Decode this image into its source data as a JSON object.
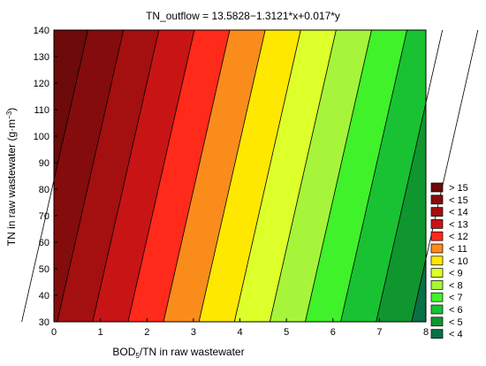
{
  "chart_data": {
    "type": "contour",
    "title": "TN_outflow = 13.5828−1.3121*x+0.017*y",
    "xlabel": {
      "pre": "BOD",
      "sub": "5",
      "post": "/TN in raw wastewater"
    },
    "ylabel": {
      "pre": "TN in raw wastewater (g·m",
      "sup": "−3",
      "post": ")"
    },
    "xlim": [
      0,
      8
    ],
    "ylim": [
      30,
      140
    ],
    "x_ticks": [
      0,
      1,
      2,
      3,
      4,
      5,
      6,
      7,
      8
    ],
    "y_ticks": [
      30,
      40,
      50,
      60,
      70,
      80,
      90,
      100,
      110,
      120,
      130,
      140
    ],
    "model": {
      "intercept": 13.5828,
      "coef_x": -1.3121,
      "coef_y": 0.017
    },
    "grid": false,
    "legend_position": "right",
    "levels": [
      {
        "label": "> 15",
        "lower": 15,
        "upper": null,
        "color": "#6d0a0a"
      },
      {
        "label": "< 15",
        "lower": 14,
        "upper": 15,
        "color": "#850c0c"
      },
      {
        "label": "< 14",
        "lower": 13,
        "upper": 14,
        "color": "#a40f0f"
      },
      {
        "label": "< 13",
        "lower": 12,
        "upper": 13,
        "color": "#c81414"
      },
      {
        "label": "< 12",
        "lower": 11,
        "upper": 12,
        "color": "#ff2a1a"
      },
      {
        "label": "< 11",
        "lower": 10,
        "upper": 11,
        "color": "#fa8c1c"
      },
      {
        "label": "< 10",
        "lower": 9,
        "upper": 10,
        "color": "#ffe800"
      },
      {
        "label": "< 9",
        "lower": 8,
        "upper": 9,
        "color": "#ddff2a"
      },
      {
        "label": "< 8",
        "lower": 7,
        "upper": 8,
        "color": "#a6f53a"
      },
      {
        "label": "< 7",
        "lower": 6,
        "upper": 7,
        "color": "#3ff22a"
      },
      {
        "label": "< 6",
        "lower": 5,
        "upper": 6,
        "color": "#19c232"
      },
      {
        "label": "< 5",
        "lower": 4,
        "upper": 5,
        "color": "#10962e"
      },
      {
        "label": "< 4",
        "lower": null,
        "upper": 4,
        "color": "#0a7045"
      }
    ]
  }
}
